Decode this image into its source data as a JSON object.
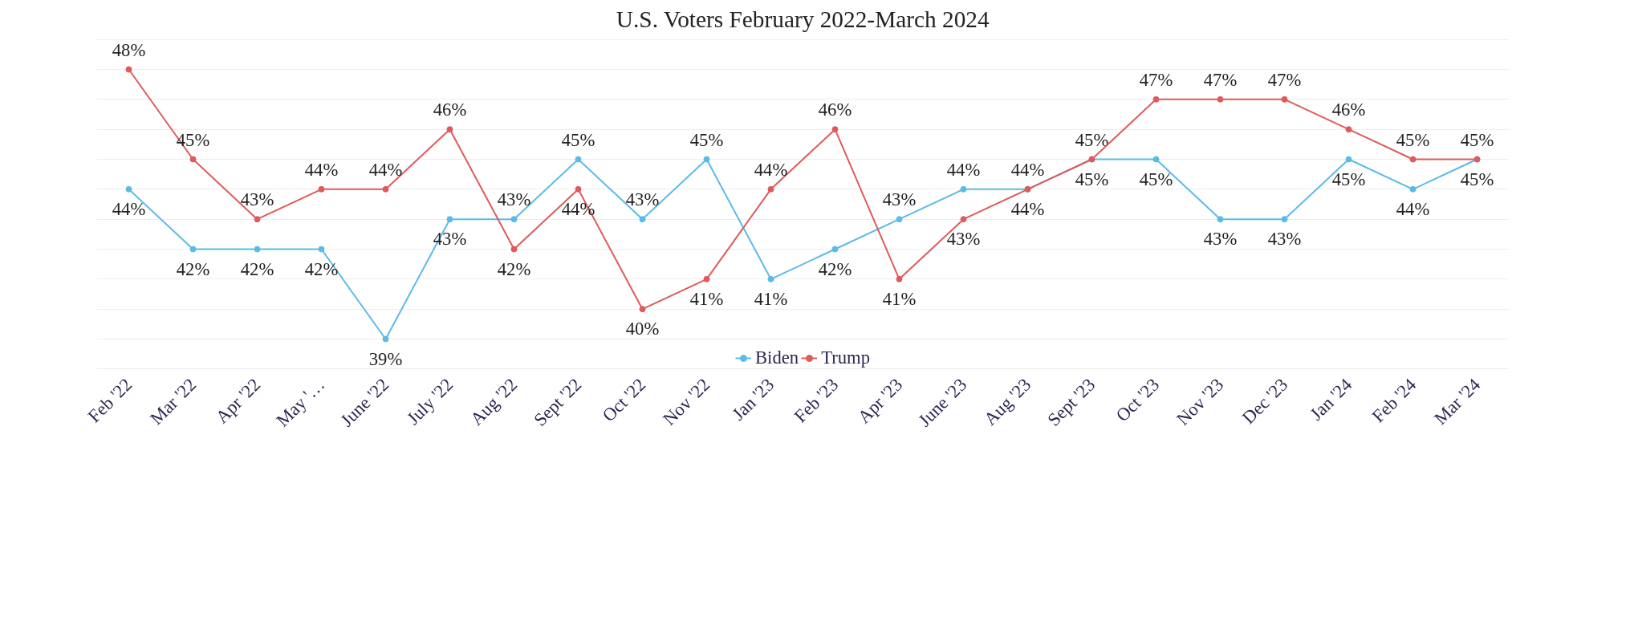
{
  "chart_data": {
    "type": "line",
    "title": "U.S. Voters February 2022-March 2024",
    "categories": [
      "Feb '22",
      "Mar '22",
      "Apr '22",
      "May '…",
      "June '22",
      "July '22",
      "Aug '22",
      "Sept '22",
      "Oct '22",
      "Nov '22",
      "Jan '23",
      "Feb '23",
      "Apr '23",
      "June '23",
      "Aug '23",
      "Sept '23",
      "Oct '23",
      "Nov '23",
      "Dec '23",
      "Jan '24",
      "Feb '24",
      "Mar '24"
    ],
    "series": [
      {
        "name": "Biden",
        "color": "#5bbbe8",
        "values": [
          44,
          42,
          42,
          42,
          39,
          43,
          43,
          45,
          43,
          45,
          41,
          42,
          43,
          44,
          44,
          45,
          45,
          43,
          43,
          45,
          44,
          45
        ],
        "value_labels": [
          "44%",
          "42%",
          "42%",
          "42%",
          "39%",
          "43%",
          "43%",
          "45%",
          "43%",
          "45%",
          "41%",
          "42%",
          "43%",
          "44%",
          "44%",
          "45%",
          "45%",
          "43%",
          "43%",
          "45%",
          "44%",
          "45%"
        ]
      },
      {
        "name": "Trump",
        "color": "#e05a5a",
        "values": [
          48,
          45,
          43,
          44,
          44,
          46,
          42,
          44,
          40,
          41,
          44,
          46,
          41,
          43,
          44,
          45,
          47,
          47,
          47,
          46,
          45,
          45
        ],
        "value_labels": [
          "48%",
          "45%",
          "43%",
          "44%",
          "44%",
          "46%",
          "42%",
          "44%",
          "40%",
          "41%",
          "44%",
          "46%",
          "41%",
          "43%",
          "44%",
          "45%",
          "47%",
          "47%",
          "47%",
          "46%",
          "45%",
          "45%"
        ]
      }
    ],
    "grid": "y",
    "legend": "bottom",
    "marker": "circle",
    "line_style": "solid",
    "tick_labels": "x"
  }
}
